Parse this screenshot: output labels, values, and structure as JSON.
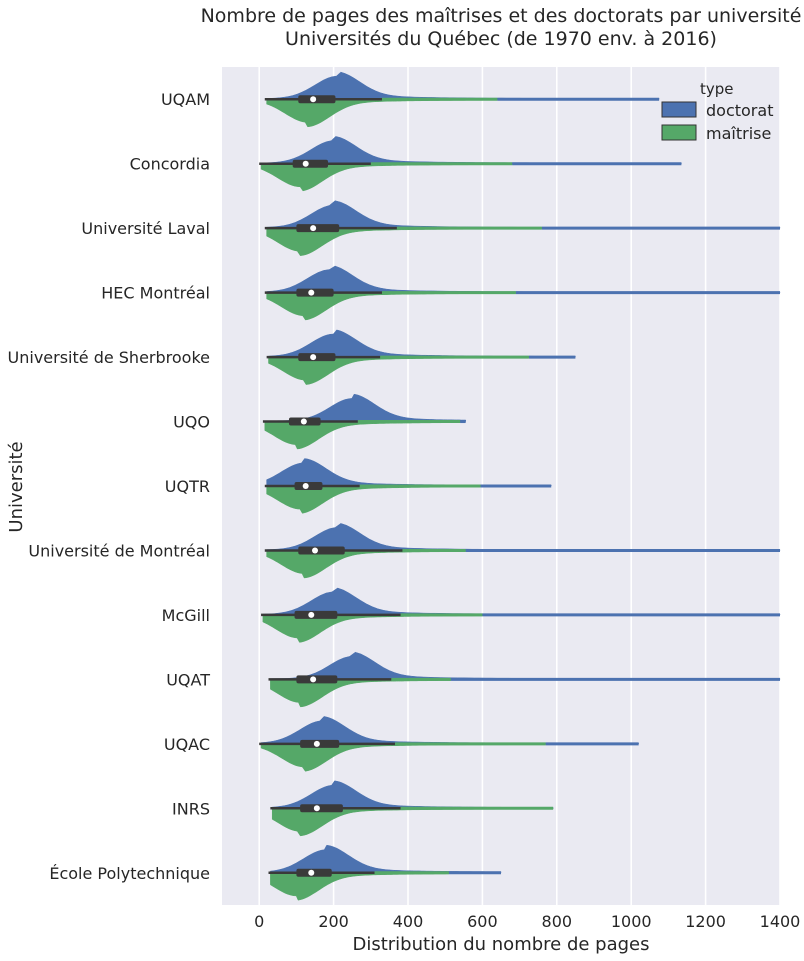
{
  "chart_data": {
    "type": "violin",
    "orientation": "horizontal",
    "split": true,
    "title": "Nombre de pages des maîtrises et des doctorats par université",
    "subtitle": "Universités du Québec (de 1970 env. à 2016)",
    "xlabel": "Distribution du nombre de pages",
    "ylabel": "Université",
    "xlim": [
      -100,
      1400
    ],
    "xticks": [
      0,
      200,
      400,
      600,
      800,
      1000,
      1200,
      1400
    ],
    "grid": true,
    "legend": {
      "title": "type",
      "position": "top-right",
      "entries": [
        {
          "name": "doctorat",
          "color": "#4c72b0"
        },
        {
          "name": "maîtrise",
          "color": "#55a868"
        }
      ]
    },
    "colors": {
      "background": "#eaeaf2",
      "grid": "#ffffff",
      "doctorat": "#4c72b0",
      "maitrise": "#55a868",
      "box": "#3a3a3a"
    },
    "categories": [
      {
        "name": "UQAM",
        "doc": {
          "min": 20,
          "max": 1075,
          "peak": 210,
          "tailEnd": 640
        },
        "mait": {
          "min": 20,
          "max": 640,
          "peak": 130
        },
        "box": {
          "q1": 105,
          "median": 145,
          "q3": 205,
          "wlo": 15,
          "whi": 330
        }
      },
      {
        "name": "Concordia",
        "doc": {
          "min": 5,
          "max": 1135,
          "peak": 200,
          "tailEnd": 680
        },
        "mait": {
          "min": 5,
          "max": 680,
          "peak": 110
        },
        "box": {
          "q1": 90,
          "median": 125,
          "q3": 185,
          "wlo": 0,
          "whi": 300
        }
      },
      {
        "name": "Université Laval",
        "doc": {
          "min": 20,
          "max": 1400,
          "peak": 200,
          "tailEnd": 760
        },
        "mait": {
          "min": 20,
          "max": 760,
          "peak": 110
        },
        "box": {
          "q1": 100,
          "median": 145,
          "q3": 215,
          "wlo": 15,
          "whi": 370
        }
      },
      {
        "name": "HEC Montréal",
        "doc": {
          "min": 20,
          "max": 1400,
          "peak": 190,
          "tailEnd": 690
        },
        "mait": {
          "min": 20,
          "max": 690,
          "peak": 120
        },
        "box": {
          "q1": 100,
          "median": 140,
          "q3": 200,
          "wlo": 15,
          "whi": 330
        }
      },
      {
        "name": "Université de Sherbrooke",
        "doc": {
          "min": 25,
          "max": 850,
          "peak": 200,
          "tailEnd": 725
        },
        "mait": {
          "min": 25,
          "max": 725,
          "peak": 125
        },
        "box": {
          "q1": 105,
          "median": 145,
          "q3": 205,
          "wlo": 20,
          "whi": 325
        }
      },
      {
        "name": "UQO",
        "doc": {
          "min": 15,
          "max": 555,
          "peak": 250,
          "tailEnd": 540
        },
        "mait": {
          "min": 15,
          "max": 540,
          "peak": 100
        },
        "box": {
          "q1": 80,
          "median": 120,
          "q3": 165,
          "wlo": 10,
          "whi": 265
        }
      },
      {
        "name": "UQTR",
        "doc": {
          "min": 20,
          "max": 785,
          "peak": 120,
          "tailEnd": 595
        },
        "mait": {
          "min": 20,
          "max": 595,
          "peak": 110
        },
        "box": {
          "q1": 95,
          "median": 125,
          "q3": 170,
          "wlo": 15,
          "whi": 270
        }
      },
      {
        "name": "Université de Montréal",
        "doc": {
          "min": 20,
          "max": 1400,
          "peak": 210,
          "tailEnd": 555
        },
        "mait": {
          "min": 20,
          "max": 555,
          "peak": 120
        },
        "box": {
          "q1": 105,
          "median": 150,
          "q3": 230,
          "wlo": 15,
          "whi": 385
        }
      },
      {
        "name": "McGill",
        "doc": {
          "min": 10,
          "max": 1400,
          "peak": 200,
          "tailEnd": 600
        },
        "mait": {
          "min": 10,
          "max": 600,
          "peak": 105
        },
        "box": {
          "q1": 95,
          "median": 140,
          "q3": 210,
          "wlo": 5,
          "whi": 380
        }
      },
      {
        "name": "UQAT",
        "doc": {
          "min": 30,
          "max": 1400,
          "peak": 250,
          "tailEnd": 515
        },
        "mait": {
          "min": 30,
          "max": 515,
          "peak": 110
        },
        "box": {
          "q1": 100,
          "median": 145,
          "q3": 210,
          "wlo": 25,
          "whi": 355
        }
      },
      {
        "name": "UQAC",
        "doc": {
          "min": 5,
          "max": 1020,
          "peak": 170,
          "tailEnd": 770
        },
        "mait": {
          "min": 5,
          "max": 770,
          "peak": 120
        },
        "box": {
          "q1": 110,
          "median": 155,
          "q3": 215,
          "wlo": 0,
          "whi": 365
        }
      },
      {
        "name": "INRS",
        "doc": {
          "min": 35,
          "max": 790,
          "peak": 200,
          "tailEnd": 790
        },
        "mait": {
          "min": 35,
          "max": 790,
          "peak": 110
        },
        "box": {
          "q1": 110,
          "median": 155,
          "q3": 225,
          "wlo": 30,
          "whi": 380
        }
      },
      {
        "name": "École Polytechnique",
        "doc": {
          "min": 30,
          "max": 650,
          "peak": 180,
          "tailEnd": 510
        },
        "mait": {
          "min": 30,
          "max": 510,
          "peak": 100
        },
        "box": {
          "q1": 100,
          "median": 140,
          "q3": 195,
          "wlo": 25,
          "whi": 310
        }
      }
    ]
  }
}
